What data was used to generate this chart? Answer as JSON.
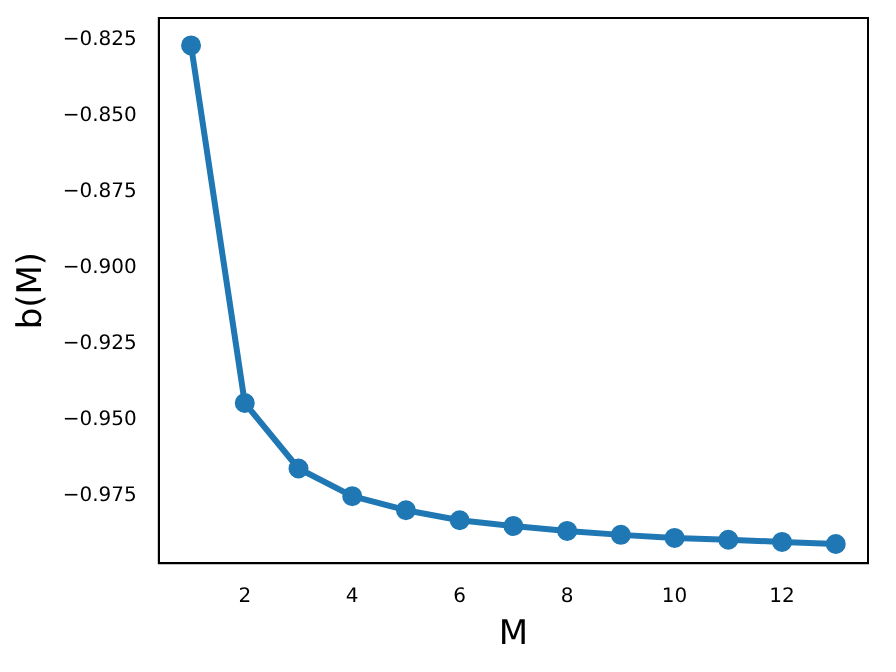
{
  "chart_data": {
    "type": "line",
    "xlabel": "M",
    "ylabel": "b(M)",
    "x": [
      1,
      2,
      3,
      4,
      5,
      6,
      7,
      8,
      9,
      10,
      11,
      12,
      13
    ],
    "series": [
      {
        "color": "#1f77b4",
        "values": [
          -0.827,
          -0.9444,
          -0.9659,
          -0.975,
          -0.9796,
          -0.9829,
          -0.9848,
          -0.9864,
          -0.9877,
          -0.9887,
          -0.9893,
          -0.99,
          -0.9907
        ]
      }
    ],
    "xlim": [
      0.4,
      13.6
    ],
    "ylim": [
      -0.997,
      -0.818
    ],
    "xticks": [
      2,
      4,
      6,
      8,
      10,
      12
    ],
    "yticks": [
      {
        "value": -0.825,
        "label": "−0.825"
      },
      {
        "value": -0.85,
        "label": "−0.850"
      },
      {
        "value": -0.875,
        "label": "−0.875"
      },
      {
        "value": -0.9,
        "label": "−0.900"
      },
      {
        "value": -0.925,
        "label": "−0.925"
      },
      {
        "value": -0.95,
        "label": "−0.950"
      },
      {
        "value": -0.975,
        "label": "−0.975"
      }
    ],
    "grid": false,
    "legend": false,
    "marker": "circle",
    "line_style": "solid"
  }
}
